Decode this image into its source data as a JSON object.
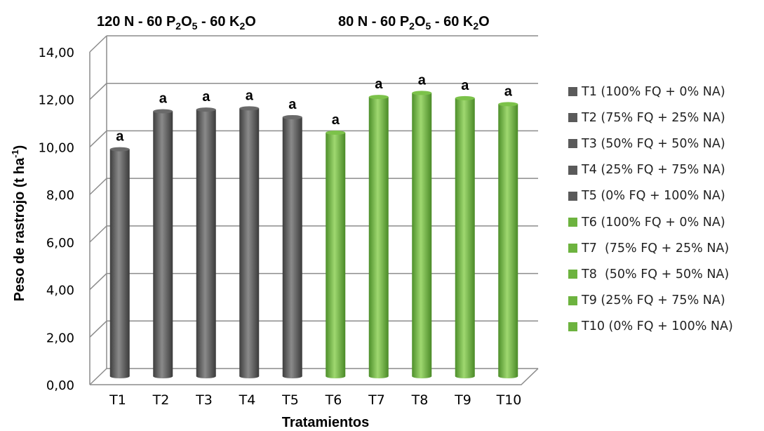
{
  "chart_data": {
    "type": "bar",
    "title_left": {
      "prefix": "120 N - 60 P",
      "sub1": "2",
      "mid1": "O",
      "sub2": "5",
      "mid2": " - 60 K",
      "sub3": "2",
      "mid3": "O"
    },
    "title_right": {
      "prefix": "80 N - 60 P",
      "sub1": "2",
      "mid1": "O",
      "sub2": "5",
      "mid2": " - 60 K",
      "sub3": "2",
      "mid3": "O"
    },
    "xlabel": "Tratamientos",
    "ylabel": {
      "main": "Peso de rastrojo (t ha",
      "sup": "-1",
      "end": ")"
    },
    "ylim": [
      0,
      14
    ],
    "yticks": [
      "0,00",
      "2,00",
      "4,00",
      "6,00",
      "8,00",
      "10,00",
      "12,00",
      "14,00"
    ],
    "categories": [
      "T1",
      "T2",
      "T3",
      "T4",
      "T5",
      "T6",
      "T7",
      "T8",
      "T9",
      "T10"
    ],
    "values": [
      9.55,
      11.15,
      11.22,
      11.27,
      10.9,
      10.25,
      11.75,
      11.92,
      11.7,
      11.45
    ],
    "bar_labels": [
      "a",
      "a",
      "a",
      "a",
      "a",
      "a",
      "a",
      "a",
      "a",
      "a"
    ],
    "colors": [
      "#5a5a5a",
      "#5a5a5a",
      "#5a5a5a",
      "#5a5a5a",
      "#5a5a5a",
      "#6db33f",
      "#6db33f",
      "#6db33f",
      "#6db33f",
      "#6db33f"
    ],
    "legend": [
      {
        "label": "T1 (100% FQ + 0% NA)",
        "color": "#5a5a5a"
      },
      {
        "label": "T2 (75% FQ + 25% NA)",
        "color": "#5a5a5a"
      },
      {
        "label": "T3 (50% FQ + 50% NA)",
        "color": "#5a5a5a"
      },
      {
        "label": "T4 (25% FQ + 75% NA)",
        "color": "#5a5a5a"
      },
      {
        "label": "T5 (0% FQ + 100% NA)",
        "color": "#5a5a5a"
      },
      {
        "label": "T6 (100% FQ + 0% NA)",
        "color": "#6db33f"
      },
      {
        "label": "T7  (75% FQ + 25% NA)",
        "color": "#6db33f"
      },
      {
        "label": "T8  (50% FQ + 50% NA)",
        "color": "#6db33f"
      },
      {
        "label": "T9 (25% FQ + 75% NA)",
        "color": "#6db33f"
      },
      {
        "label": "T10 (0% FQ + 100% NA)",
        "color": "#6db33f"
      }
    ],
    "legend_position": "right",
    "grid": true
  }
}
